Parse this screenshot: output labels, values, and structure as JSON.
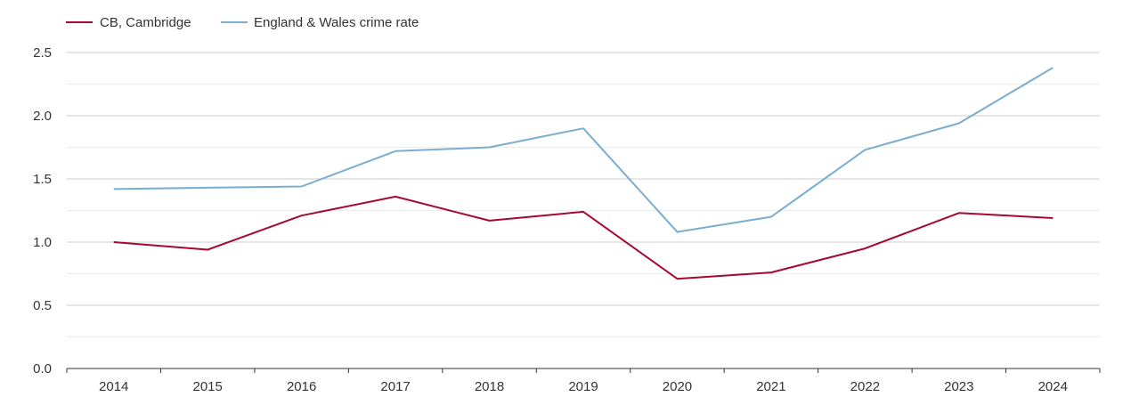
{
  "chart_data": {
    "type": "line",
    "title": "",
    "xlabel": "",
    "ylabel": "",
    "categories": [
      "2014",
      "2015",
      "2016",
      "2017",
      "2018",
      "2019",
      "2020",
      "2021",
      "2022",
      "2023",
      "2024"
    ],
    "series": [
      {
        "name": "CB, Cambridge",
        "color": "#a50a2e",
        "values": [
          1.0,
          0.94,
          1.21,
          1.36,
          1.17,
          1.24,
          0.71,
          0.76,
          0.95,
          1.23,
          1.19
        ]
      },
      {
        "name": "England & Wales crime rate",
        "color": "#7aadcf",
        "values": [
          1.42,
          1.43,
          1.44,
          1.72,
          1.75,
          1.9,
          1.08,
          1.2,
          1.73,
          1.94,
          2.38
        ]
      }
    ],
    "ylim": [
      0,
      2.5
    ],
    "y_ticks": [
      "0.0",
      "0.5",
      "1.0",
      "1.5",
      "2.0",
      "2.5"
    ],
    "grid": true,
    "legend_position": "top-left"
  }
}
